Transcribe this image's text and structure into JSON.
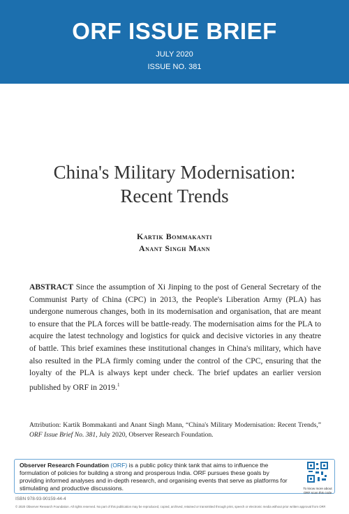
{
  "header": {
    "title": "ORF ISSUE BRIEF",
    "date": "JULY 2020",
    "issue": "ISSUE NO. 381"
  },
  "document": {
    "title_lines": [
      "China's Military Modernisation:",
      "Recent Trends"
    ],
    "authors": [
      "Kartik Bommakanti",
      "Anant Singh Mann"
    ],
    "abstract_label": "ABSTRACT",
    "abstract": "Since the assumption of Xi Jinping to the post of General Secretary of the Communist Party of China (CPC) in 2013, the People's Liberation Army (PLA) has undergone numerous changes, both in its modernisation and organisation, that are meant to ensure that the PLA forces will be battle-ready. The modernisation aims for the PLA to acquire the latest technology and logistics for quick and decisive victories in any theatre of battle. This brief examines these institutional changes in China's military, which have also resulted in the PLA firmly coming under the control of the CPC, ensuring that the loyalty of the PLA is always kept under check. The brief updates an earlier version published by ORF in 2019.",
    "abstract_note": "1",
    "attribution": {
      "lead": "Attribution: Kartik Bommakanti and Anant Singh Mann, “China's Military Modernisation: Recent Trends,” ",
      "series": "ORF Issue Brief No. 381",
      "tail": ", July 2020, Observer Research Foundation."
    }
  },
  "footer": {
    "org": "Observer Research Foundation",
    "org_abbr": "(ORF)",
    "description": "is a public policy think tank that aims to influence the formulation of policies for building a strong and prosperous India. ORF pursues these goals by providing informed analyses and in-depth research, and organising events that serve as platforms for stimulating and productive discussions.",
    "qr_caption": "To know more about ORF scan this code",
    "isbn": "ISBN 978-93-90159-44-4",
    "copyright": "© 2020 Observer Research Foundation. All rights reserved. No part of this publication may be reproduced, copied, archived, retained or transmitted through print, speech or electronic media without prior written approval from ORF."
  }
}
